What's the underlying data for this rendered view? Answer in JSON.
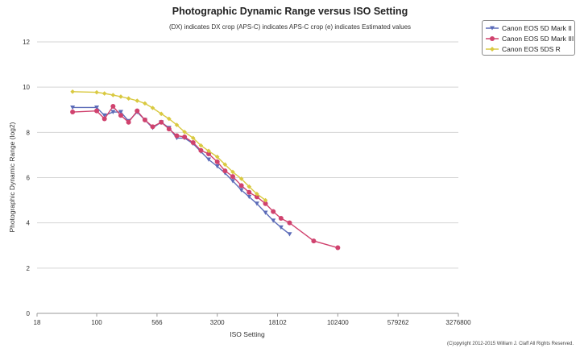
{
  "chart_data": {
    "type": "line",
    "title": "Photographic Dynamic Range versus ISO Setting",
    "subtitle": "(DX) indicates DX crop (APS-C) indicates APS-C crop (e) indicates Estimated values",
    "xlabel": "ISO Setting",
    "ylabel": "Photographic Dynamic Range (log2)",
    "x_scale": "log",
    "xlim": [
      18,
      3276800
    ],
    "ylim": [
      0,
      12
    ],
    "x_ticks": [
      "18",
      "100",
      "566",
      "3200",
      "18102",
      "102400",
      "579262",
      "3276800"
    ],
    "y_ticks": [
      "0",
      "2",
      "4",
      "6",
      "8",
      "10",
      "12"
    ],
    "grid": "horizontal",
    "legend_position": "top-right",
    "copyright": "(C)opyright 2012-2015 William J. Claff All Rights Reserved.",
    "series": [
      {
        "name": "Canon EOS 5D Mark II",
        "color": "#5b6bb8",
        "marker": "triangle-down",
        "x": [
          50,
          100,
          125,
          160,
          200,
          250,
          320,
          400,
          500,
          640,
          800,
          1000,
          1250,
          1600,
          2000,
          2500,
          3200,
          4000,
          5000,
          6400,
          8000,
          10000,
          12800,
          16000,
          20000,
          25600
        ],
        "y": [
          9.1,
          9.1,
          8.75,
          8.9,
          8.9,
          8.5,
          8.9,
          8.55,
          8.2,
          8.45,
          8.2,
          7.75,
          7.75,
          7.5,
          7.15,
          6.8,
          6.5,
          6.2,
          5.85,
          5.45,
          5.15,
          4.85,
          4.45,
          4.1,
          3.8,
          3.5
        ]
      },
      {
        "name": "Canon EOS 5D Mark III",
        "color": "#d0426e",
        "marker": "circle",
        "x": [
          50,
          100,
          125,
          160,
          200,
          250,
          320,
          400,
          500,
          640,
          800,
          1000,
          1250,
          1600,
          2000,
          2500,
          3200,
          4000,
          5000,
          6400,
          8000,
          10000,
          12800,
          16000,
          20000,
          25600,
          51200,
          102400
        ],
        "y": [
          8.9,
          8.95,
          8.6,
          9.15,
          8.75,
          8.45,
          8.95,
          8.55,
          8.25,
          8.45,
          8.15,
          7.85,
          7.8,
          7.55,
          7.2,
          7.05,
          6.7,
          6.3,
          6.05,
          5.65,
          5.35,
          5.15,
          4.85,
          4.5,
          4.2,
          4.0,
          3.2,
          2.9
        ]
      },
      {
        "name": "Canon EOS 5DS R",
        "color": "#d9c940",
        "marker": "diamond",
        "x": [
          50,
          100,
          125,
          160,
          200,
          250,
          320,
          400,
          500,
          640,
          800,
          1000,
          1250,
          1600,
          2000,
          2500,
          3200,
          4000,
          5000,
          6400,
          8000,
          10000,
          12800
        ],
        "y": [
          9.8,
          9.77,
          9.72,
          9.65,
          9.58,
          9.5,
          9.4,
          9.28,
          9.08,
          8.82,
          8.6,
          8.33,
          8.02,
          7.75,
          7.42,
          7.18,
          6.92,
          6.58,
          6.25,
          5.95,
          5.6,
          5.28,
          5.0
        ]
      }
    ]
  }
}
